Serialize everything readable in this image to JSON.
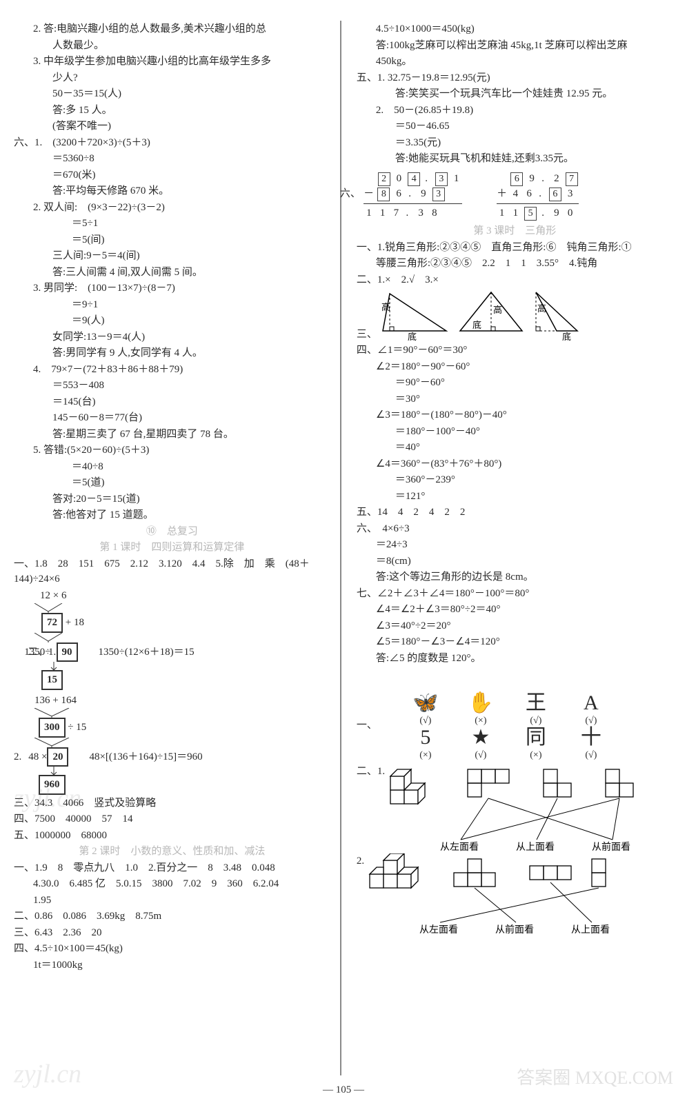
{
  "left": {
    "l2a": "2. 答:电脑兴趣小组的总人数最多,美术兴趣小组的总",
    "l2b": "人数最少。",
    "l3a": "3. 中年级学生参加电脑兴趣小组的比高年级学生多多",
    "l3b": "少人?",
    "l3c": "50－35＝15(人)",
    "l3d": "答:多 15 人。",
    "l3e": "(答案不唯一)",
    "s6_1a": "六、1.　(3200＋720×3)÷(5＋3)",
    "s6_1b": "＝5360÷8",
    "s6_1c": "＝670(米)",
    "s6_1d": "答:平均每天修路 670 米。",
    "s6_2a": "2. 双人间:　(9×3－22)÷(3－2)",
    "s6_2b": "＝5÷1",
    "s6_2c": "＝5(间)",
    "s6_2d": "三人间:9－5＝4(间)",
    "s6_2e": "答:三人间需 4 间,双人间需 5 间。",
    "s6_3a": "3. 男同学:　(100－13×7)÷(8－7)",
    "s6_3b": "＝9÷1",
    "s6_3c": "＝9(人)",
    "s6_3d": "女同学:13－9＝4(人)",
    "s6_3e": "答:男同学有 9 人,女同学有 4 人。",
    "s6_4a": "4.　79×7－(72＋83＋86＋88＋79)",
    "s6_4b": "＝553－408",
    "s6_4c": "＝145(台)",
    "s6_4d": "145－60－8＝77(台)",
    "s6_4e": "答:星期三卖了 67 台,星期四卖了 78 台。",
    "s6_5a": "5. 答错:(5×20－60)÷(5＋3)",
    "s6_5b": "＝40÷8",
    "s6_5c": "＝5(道)",
    "s6_5d": "答对:20－5＝15(道)",
    "s6_5e": "答:他答对了 15 道题。",
    "heading10": "⑩　总复习",
    "lesson1": "第 1 课时　四则运算和运算定律",
    "p1_1": "一、1.8　28　151　675　2.12　3.120　4.4　5.除　加　乘　(48＋144)÷24×6",
    "fc1_top": "12 × 6",
    "fc1_b1": "72",
    "fc1_b1_op": "+ 18",
    "fc1_eq": "二、1.",
    "fc1_b2": "90",
    "fc1_side": "1350÷(12×6＋18)＝15",
    "fc1_pre2": "1350÷",
    "fc1_b3": "15",
    "fc2_top": "136 + 164",
    "fc2_b1": "300",
    "fc2_b1_op": "÷ 15",
    "fc2_eq": "2.",
    "fc2_pre2": "48 ×",
    "fc2_b2": "20",
    "fc2_side": "48×[(136＋164)÷15]＝960",
    "fc2_b3": "960",
    "p1_3": "三、34.3　4066　竖式及验算略",
    "p1_4": "四、7500　40000　57　14",
    "p1_5": "五、1000000　68000",
    "lesson2": "第 2 课时　小数的意义、性质和加、减法",
    "p2_1a": "一、1.9　8　零点九八　1.0　2.百分之一　8　3.48　0.048",
    "p2_1b": "4.30.0　6.485 亿　5.0.15　3800　7.02　9　360　6.2.04",
    "p2_1c": "1.95",
    "p2_2": "二、0.86　0.086　3.69kg　8.75m",
    "p2_3": "三、6.43　2.36　20",
    "p2_4a": "四、4.5÷10×100＝45(kg)",
    "p2_4b": "1t＝1000kg"
  },
  "right": {
    "r1": "4.5÷10×1000＝450(kg)",
    "r2": "答:100kg芝麻可以榨出芝麻油 45kg,1t 芝麻可以榨出芝麻",
    "r2b": "450kg。",
    "r5_1a": "五、1. 32.75－19.8＝12.95(元)",
    "r5_1b": "答:笑笑买一个玩具汽车比一个娃娃贵 12.95 元。",
    "r5_2a": "2.　50－(26.85＋19.8)",
    "r5_2b": "＝50－46.65",
    "r5_2c": "＝3.35(元)",
    "r5_2d": "答:她能买玩具飞机和娃娃,还剩3.35元。",
    "col1": {
      "d1": "2",
      "d2": "0",
      "d3": "4",
      "d4": "3",
      "d5": "1"
    },
    "col1b": {
      "op": "－",
      "d1": "8",
      "d2": "6",
      "d3": "9",
      "d4": "3"
    },
    "col1r": {
      "d1": "1",
      "d2": "1",
      "d3": "7",
      "d4": "3",
      "d5": "8"
    },
    "col2": {
      "d1": "6",
      "d2": "9",
      "d3": "2",
      "d4": "7"
    },
    "col2b": {
      "op": "＋",
      "d1": "4",
      "d2": "6",
      "d3": "6",
      "d4": "3"
    },
    "col2r": {
      "d1": "1",
      "d2": "1",
      "d3": "5",
      "d4": "9",
      "d5": "0"
    },
    "six_label": "六、",
    "lesson3": "第 3 课时　三角形",
    "t1a": "一、1.锐角三角形:②③④⑤　直角三角形:⑥　钝角三角形:①",
    "t1b": "等腰三角形:②③④⑤　2.2　1　1　3.55°　4.钝角",
    "t2": "二、1.×　2.√　3.×",
    "t3_label": "三、",
    "tri_labels": {
      "gao": "高",
      "di": "底"
    },
    "t4a": "四、∠1＝90°－60°＝30°",
    "t4b": "∠2＝180°－90°－60°",
    "t4c": "＝90°－60°",
    "t4d": "＝30°",
    "t4e": "∠3＝180°－(180°－80°)－40°",
    "t4f": "＝180°－100°－40°",
    "t4g": "＝40°",
    "t4h": "∠4＝360°－(83°＋76°＋80°)",
    "t4i": "＝360°－239°",
    "t4j": "＝121°",
    "t5": "五、14　4　2　4　2　2",
    "t6a": "六、　4×6÷3",
    "t6b": "＝24÷3",
    "t6c": "＝8(cm)",
    "t6d": "答:这个等边三角形的边长是 8cm。",
    "t7a": "七、∠2＋∠3＋∠4＝180°－100°＝80°",
    "t7b": "∠4＝∠2＋∠3＝80°÷2＝40°",
    "t7c": "∠3＝40°÷2＝20°",
    "t7d": "∠5＝180°－∠3－∠4＝120°",
    "t7e": "答:∠5 的度数是 120°。",
    "sym_q1": "一、",
    "sym": [
      {
        "glyph": "🦋",
        "mark": "(√)"
      },
      {
        "glyph": "✋",
        "mark": "(×)"
      },
      {
        "glyph": "王",
        "mark": "(√)"
      },
      {
        "glyph": "A",
        "mark": "(√)"
      },
      {
        "glyph": "5",
        "mark": "(×)"
      },
      {
        "glyph": "★",
        "mark": "(√)"
      },
      {
        "glyph": "同",
        "mark": "(×)"
      },
      {
        "glyph": "十",
        "mark": "(√)"
      }
    ],
    "views_q": "二、1.",
    "views_q2": "2.",
    "view_labels": {
      "left": "从左面看",
      "top": "从上面看",
      "front": "从前面看"
    }
  },
  "page_number": "— 105 —",
  "watermarks": {
    "w1": "zyjl.cn",
    "w2": "zyjl.cn",
    "w3": "答案圈 MXQE.COM"
  }
}
